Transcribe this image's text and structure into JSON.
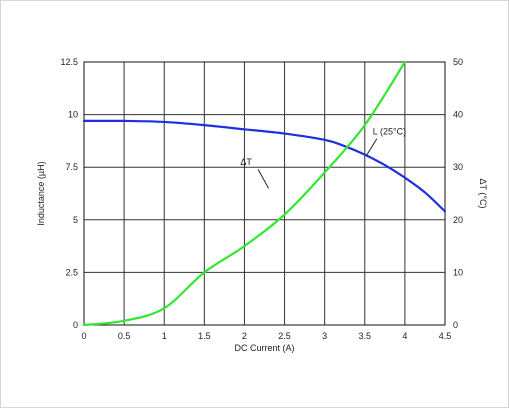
{
  "chart_data": {
    "type": "line",
    "xlabel": "DC Current (A)",
    "ylabel_left": "Inductance (µH)",
    "ylabel_right": "ΔT (°C)",
    "xlim": [
      0,
      4.5
    ],
    "ylim_left": [
      0,
      12.5
    ],
    "ylim_right": [
      0,
      50
    ],
    "x_ticks": [
      "0",
      "0.5",
      "1",
      "1.5",
      "2",
      "2.5",
      "3",
      "3.5",
      "4",
      "4.5"
    ],
    "y_ticks_left": [
      "0",
      "2.5",
      "5",
      "7.5",
      "10",
      "12.5"
    ],
    "y_ticks_right": [
      "0",
      "10",
      "20",
      "30",
      "40",
      "50"
    ],
    "grid": true,
    "series": [
      {
        "name": "L (25°C)",
        "axis": "left",
        "color": "#1f2fe0",
        "x": [
          0,
          0.5,
          1,
          1.5,
          2,
          2.5,
          3,
          3.25,
          3.5,
          3.75,
          4,
          4.25,
          4.5
        ],
        "y": [
          9.7,
          9.7,
          9.65,
          9.5,
          9.3,
          9.1,
          8.8,
          8.5,
          8.1,
          7.6,
          7.0,
          6.3,
          5.4
        ]
      },
      {
        "name": "ΔT",
        "axis": "right",
        "color": "#33e633",
        "x": [
          0,
          0.5,
          1,
          1.5,
          2,
          2.5,
          3,
          3.5,
          4
        ],
        "y": [
          0,
          0.8,
          3.2,
          10.0,
          15.0,
          21.0,
          29.0,
          38.0,
          50.0
        ]
      }
    ]
  }
}
